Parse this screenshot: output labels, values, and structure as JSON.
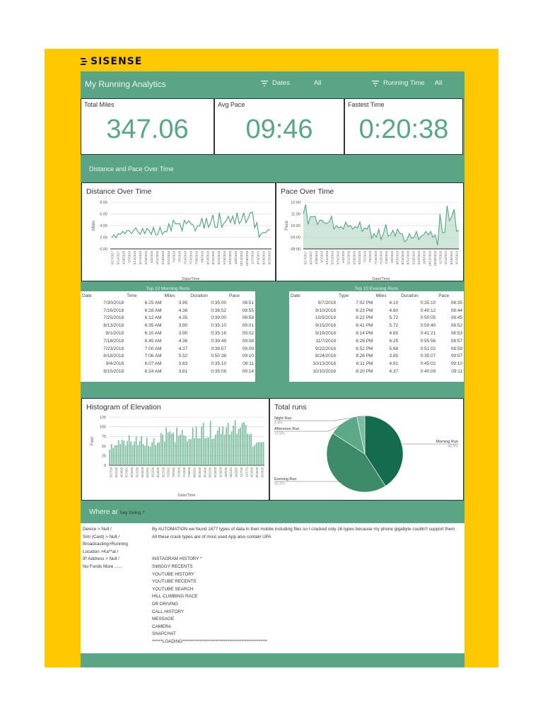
{
  "brand": {
    "logo_text": "SISENSE",
    "page_bg": "#FFC800",
    "accent": "#5BA587",
    "accent_dark": "#146B4D"
  },
  "header": {
    "title": "My Running Analytics",
    "filters": [
      {
        "label": "Dates",
        "value": "All",
        "icon": "filter-icon"
      },
      {
        "label": "Running Time",
        "value": "All",
        "icon": "filter-icon"
      }
    ]
  },
  "kpis": [
    {
      "label": "Total Miles",
      "value": "347.06"
    },
    {
      "label": "Avg Pace",
      "value": "09:46"
    },
    {
      "label": "Fastest Time",
      "value": "0:20:38"
    }
  ],
  "sections": {
    "distance_pace": "Distance and Pace Over Time",
    "where_prefix": "Where an",
    "where_suffix": "They Doing ?"
  },
  "chart_data": [
    {
      "type": "line",
      "title": "Distance Over Time",
      "xlabel": "Date/Time",
      "ylabel": "Miles",
      "ylim": [
        0,
        8
      ],
      "yticks": [
        "0.00",
        "2.00",
        "4.00",
        "6.00",
        "8.00"
      ],
      "xticks": [
        "5/17/2017",
        "6/21/2017",
        "4/28/2018",
        "5/7/2018",
        "5/14/2018",
        "5/21/2018",
        "5/29/2018",
        "6/4/2018",
        "6/11/2018",
        "6/18/2018",
        "6/22/2018",
        "7/2/2018",
        "7/9/2018",
        "7/16/2018",
        "7/23/2018",
        "7/30/2018",
        "8/6/2018",
        "8/15/2018",
        "8/24/2018",
        "8/31/2018",
        "9/10/2018",
        "9/19/2018",
        "10/5/2018",
        "10/13/2018",
        "10/28/2018",
        "11/7/2018",
        "4/14/2019",
        "8/18/2019",
        "9/23/2019"
      ],
      "values": [
        1.9,
        2.4,
        1.9,
        2.6,
        2.5,
        3.0,
        2.6,
        3.1,
        3.1,
        2.6,
        3.2,
        3.6,
        2.9,
        2.5,
        3.5,
        2.6,
        3.5,
        3.1,
        2.5,
        3.7,
        2.4,
        2.5,
        3.7,
        2.5,
        3.0,
        2.9,
        4.3,
        3.1,
        4.9,
        4.3,
        4.3,
        4.3,
        3.1,
        4.9,
        4.3,
        4.8,
        4.3,
        4.1,
        3.1,
        3.9,
        3.9,
        5.3,
        3.5,
        5.3,
        3.7,
        4.5,
        5.8,
        3.7,
        3.7,
        6.2,
        3.7,
        4.4,
        4.8,
        5.6,
        4.5,
        5.6,
        4.2,
        6.2,
        4.3,
        4.9,
        6.2,
        4.5,
        5.2,
        6.2,
        6.3,
        3.6,
        4.5,
        2.0,
        2.6,
        2.8,
        2.8,
        3.2,
        3.3
      ],
      "grid": true
    },
    {
      "type": "area",
      "title": "Pace Over Time",
      "xlabel": "Date/Time",
      "ylabel": "Pace",
      "ylim": [
        "08:00",
        "12:00"
      ],
      "yticks": [
        "08:00",
        "09:00",
        "10:00",
        "11:00",
        "12:00"
      ],
      "xticks": [
        "5/17/2017",
        "6/21/2017",
        "4/28/2018",
        "5/7/2018",
        "5/14/2018",
        "5/21/2018",
        "5/29/2018",
        "6/4/2018",
        "6/11/2018",
        "6/18/2018",
        "6/22/2018",
        "7/2/2018",
        "7/9/2018",
        "7/16/2018",
        "7/23/2018",
        "7/30/2018",
        "8/6/2018",
        "8/15/2018",
        "8/24/2018",
        "8/31/2018",
        "9/10/2018",
        "9/19/2018",
        "10/5/2018",
        "10/13/2018",
        "10/28/2018",
        "11/7/2018",
        "4/14/2019",
        "8/18/2019",
        "9/23/2019"
      ],
      "values_minutes": [
        11.0,
        11.8,
        10.1,
        10.75,
        10.75,
        10.8,
        10.1,
        10.45,
        10.45,
        10.2,
        10.2,
        10.3,
        10.8,
        9.7,
        10.0,
        9.8,
        9.9,
        9.7,
        10.3,
        9.9,
        10.0,
        9.7,
        9.9,
        9.8,
        10.3,
        9.5,
        9.8,
        9.7,
        10.05,
        8.9,
        9.3,
        9.0,
        9.7,
        8.8,
        9.3,
        10.1,
        9.1,
        9.2,
        9.6,
        9.1,
        9.7,
        9.3,
        9.3,
        8.6,
        8.8,
        9.3,
        8.9,
        9.0,
        9.5,
        8.8,
        9.1,
        9.2,
        9.5,
        9.2,
        9.5,
        9.0,
        9.2,
        8.3,
        11.0,
        9.4,
        9.4,
        11.7,
        10.4,
        10.8,
        11.4,
        9.5,
        9.6
      ],
      "grid": true
    },
    {
      "type": "bar",
      "title": "Histogram of Elevation",
      "xlabel": "Date/Time",
      "ylabel": "Feet",
      "ylim": [
        0,
        125
      ],
      "yticks": [
        "0",
        "25",
        "50",
        "75",
        "100",
        "125"
      ],
      "xticks": [
        "5/17/20",
        "6/21/20",
        "4/28/20",
        "5/7/201",
        "5/15/20",
        "5/21/20",
        "5/26/20",
        "6/4/201",
        "6/11/20",
        "6/16/20",
        "6/22/20",
        "7/2/201",
        "7/9/201",
        "7/16/20",
        "7/23/20",
        "7/30/20",
        "8/6/201",
        "8/15/20",
        "8/24/20",
        "8/31/20",
        "9/10/20",
        "9/19/20",
        "10/5/20",
        "10/13/2",
        "10/26/2",
        "11/7/20",
        "11/17/2",
        "4/14/20",
        "8/18/20",
        "9/23/20"
      ],
      "values": [
        40,
        55,
        45,
        52,
        52,
        65,
        55,
        66,
        64,
        52,
        63,
        78,
        62,
        52,
        62,
        74,
        52,
        63,
        75,
        55,
        50,
        72,
        50,
        48,
        60,
        70,
        52,
        58,
        60,
        84,
        80,
        62,
        98,
        85,
        88,
        82,
        85,
        60,
        98,
        76,
        80,
        92,
        78,
        76,
        62,
        68,
        68,
        98,
        70,
        100,
        70,
        70,
        100,
        110,
        70,
        72,
        72,
        115,
        68,
        70,
        80,
        90,
        100,
        82,
        100,
        80,
        98,
        110,
        80,
        88,
        103,
        117,
        82,
        95,
        98,
        110,
        112,
        105,
        82,
        80,
        82,
        48,
        52,
        58,
        60,
        60,
        60,
        60
      ],
      "grid": true
    },
    {
      "type": "pie",
      "title": "Total runs",
      "labels": [
        "Morning Run",
        "Evening Run",
        "Afternoon Run",
        "Night Run"
      ],
      "values": [
        40.9,
        43.2,
        12.5,
        3.4
      ],
      "display": [
        "40.9%",
        "43.2%",
        "12.5%",
        "3.4%"
      ],
      "colors": [
        "#146B4D",
        "#3D8B69",
        "#5DA888",
        "#7CBD9F"
      ]
    }
  ],
  "tables": {
    "morning": {
      "caption": "Top 10 Morning Runs",
      "columns": [
        "Date",
        "Time",
        "Miles",
        "Duration",
        "Pace"
      ],
      "rows": [
        [
          "7/30/2018",
          "6:25 AM",
          "3.95",
          "0:35:00",
          "08:51"
        ],
        [
          "7/16/2018",
          "6:28 AM",
          "4.36",
          "0:38:52",
          "08:55"
        ],
        [
          "7/25/2018",
          "6:12 AM",
          "4.35",
          "0:39:00",
          "08:58"
        ],
        [
          "8/13/2018",
          "6:35 AM",
          "3.90",
          "0:35:10",
          "09:01"
        ],
        [
          "8/1/2018",
          "6:10 AM",
          "3.90",
          "0:35:16",
          "09:02"
        ],
        [
          "7/18/2018",
          "6:45 AM",
          "4.36",
          "0:39:49",
          "09:08"
        ],
        [
          "7/23/2018",
          "7:00 AM",
          "4.37",
          "0:39:57",
          "09:09"
        ],
        [
          "8/18/2018",
          "7:06 AM",
          "5.52",
          "0:50:38",
          "09:10"
        ],
        [
          "9/4/2018",
          "6:07 AM",
          "3.83",
          "0:35:10",
          "09:11"
        ],
        [
          "8/15/2018",
          "6:24 AM",
          "3.81",
          "0:35:09",
          "09:14"
        ]
      ]
    },
    "evening": {
      "caption": "Top 10 Evening Runs",
      "columns": [
        "Date",
        "Type",
        "Miles",
        "Duration",
        "Pace"
      ],
      "rows": [
        [
          "9/7/2018",
          "7:02 PM",
          "4.10",
          "0:35:10",
          "08:35"
        ],
        [
          "9/10/2018",
          "6:23 PM",
          "4.60",
          "0:40:12",
          "08:44"
        ],
        [
          "10/5/2018",
          "6:22 PM",
          "5.72",
          "0:50:05",
          "08:45"
        ],
        [
          "9/15/2018",
          "8:41 PM",
          "5.72",
          "0:50:40",
          "08:52"
        ],
        [
          "9/19/2018",
          "6:14 PM",
          "4.65",
          "0:41:21",
          "08:53"
        ],
        [
          "11/7/2018",
          "6:28 PM",
          "6.25",
          "0:55:56",
          "08:57"
        ],
        [
          "9/22/2018",
          "6:52 PM",
          "5.68",
          "0:51:02",
          "08:59"
        ],
        [
          "8/24/2018",
          "8:26 PM",
          "3.85",
          "0:35:07",
          "09:07"
        ],
        [
          "10/13/2018",
          "6:11 PM",
          "4.91",
          "0:45:02",
          "09:10"
        ],
        [
          "10/10/2018",
          "8:20 PM",
          "4.37",
          "0:40:09",
          "09:11"
        ]
      ]
    }
  },
  "notes": {
    "left": [
      "Device > Null       /",
      "Sim (Card) > Null /",
      "Broadcasting>Running",
      "Location >Ka**al /",
      "IP Address > Null /",
      "No Funds More ......"
    ],
    "right": [
      "By AUTOMATION we found 1677 types of data in their mobile  including files so I cracked only 16 types because my phone gigabyte couldn't support them",
      "All these crack types are of most used  App also contain UPA",
      "",
      "",
      "INSTAGRAM HISTORY *",
      "SWIGGY RECENTS",
      "YOUTUBE HISTORY",
      "YOUTUBE RECENTS",
      "YOUTUBE SEARCH",
      "HILL CLIMBING RACE",
      "DR DRIVING",
      "CALL HISTORY",
      "MESSAGE",
      "CAMERA",
      "SNAPCHAT",
      "******LOADING*************************************************"
    ]
  }
}
